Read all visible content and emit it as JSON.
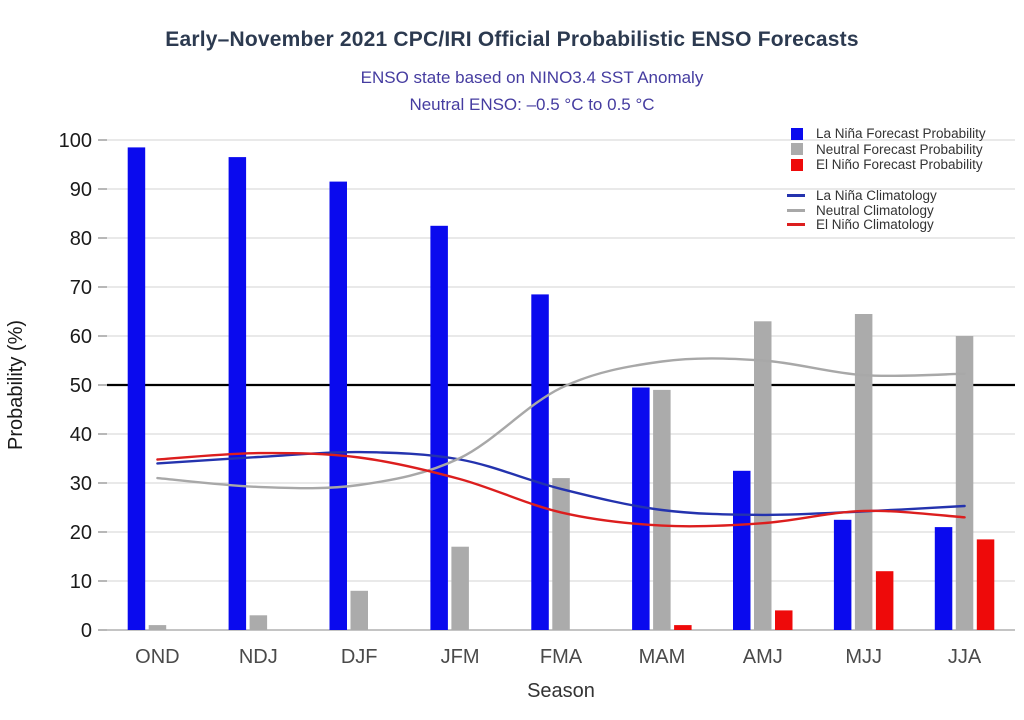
{
  "chart_data": {
    "type": "bar",
    "overlay": "line",
    "title": "Early–November 2021 CPC/IRI Official Probabilistic ENSO Forecasts",
    "subtitle": "ENSO state based on NINO3.4 SST Anomaly",
    "subtitle2": "Neutral ENSO: –0.5 °C to 0.5 °C",
    "categories": [
      "OND",
      "NDJ",
      "DJF",
      "JFM",
      "FMA",
      "MAM",
      "AMJ",
      "MJJ",
      "JJA"
    ],
    "bar_series": [
      {
        "name": "La Niña Forecast Probability",
        "color": "#0A0AEE",
        "values": [
          98.5,
          96.5,
          91.5,
          82.5,
          68.5,
          49.5,
          32.5,
          22.5,
          21
        ]
      },
      {
        "name": "Neutral Forecast Probability",
        "color": "#ABABAB",
        "values": [
          1,
          3,
          8,
          17,
          31,
          49,
          63,
          64.5,
          60
        ]
      },
      {
        "name": "El Niño Forecast Probability",
        "color": "#EE0A0A",
        "values": [
          0,
          0,
          0,
          0,
          0,
          1,
          4,
          12,
          18.5
        ]
      }
    ],
    "line_series": [
      {
        "name": "La Niña Climatology",
        "color": "#2433AE",
        "values": [
          34,
          35.3,
          36.3,
          34.8,
          28.8,
          24.5,
          23.5,
          24.2,
          25.3
        ]
      },
      {
        "name": "Neutral Climatology",
        "color": "#A8A8A8",
        "values": [
          31,
          29.2,
          29.6,
          35.1,
          49.4,
          54.8,
          55,
          52,
          52.3
        ]
      },
      {
        "name": "El Niño Climatology",
        "color": "#DC1E1E",
        "values": [
          34.8,
          36.1,
          35.2,
          30.8,
          24,
          21.3,
          21.8,
          24.3,
          23
        ]
      }
    ],
    "xlabel": "Season",
    "ylabel": "Probability (%)",
    "ylim": [
      0,
      100
    ],
    "yticks": [
      0,
      10,
      20,
      30,
      40,
      50,
      60,
      70,
      80,
      90,
      100
    ],
    "reference_line": {
      "value": 50,
      "color": "#000000"
    },
    "grid": true,
    "legend_position": "top-right"
  },
  "colors": {
    "title": "#2C3A50",
    "subtitle": "#453CA0",
    "grid": "#DCDCDC",
    "axis_line": "#C4C4C4",
    "tick_mark": "#999999",
    "y_tick_label": "#1A1A1A",
    "x_tick_label": "#4A4A4A",
    "axis_title": "#222222",
    "legend_text": "#333333"
  }
}
